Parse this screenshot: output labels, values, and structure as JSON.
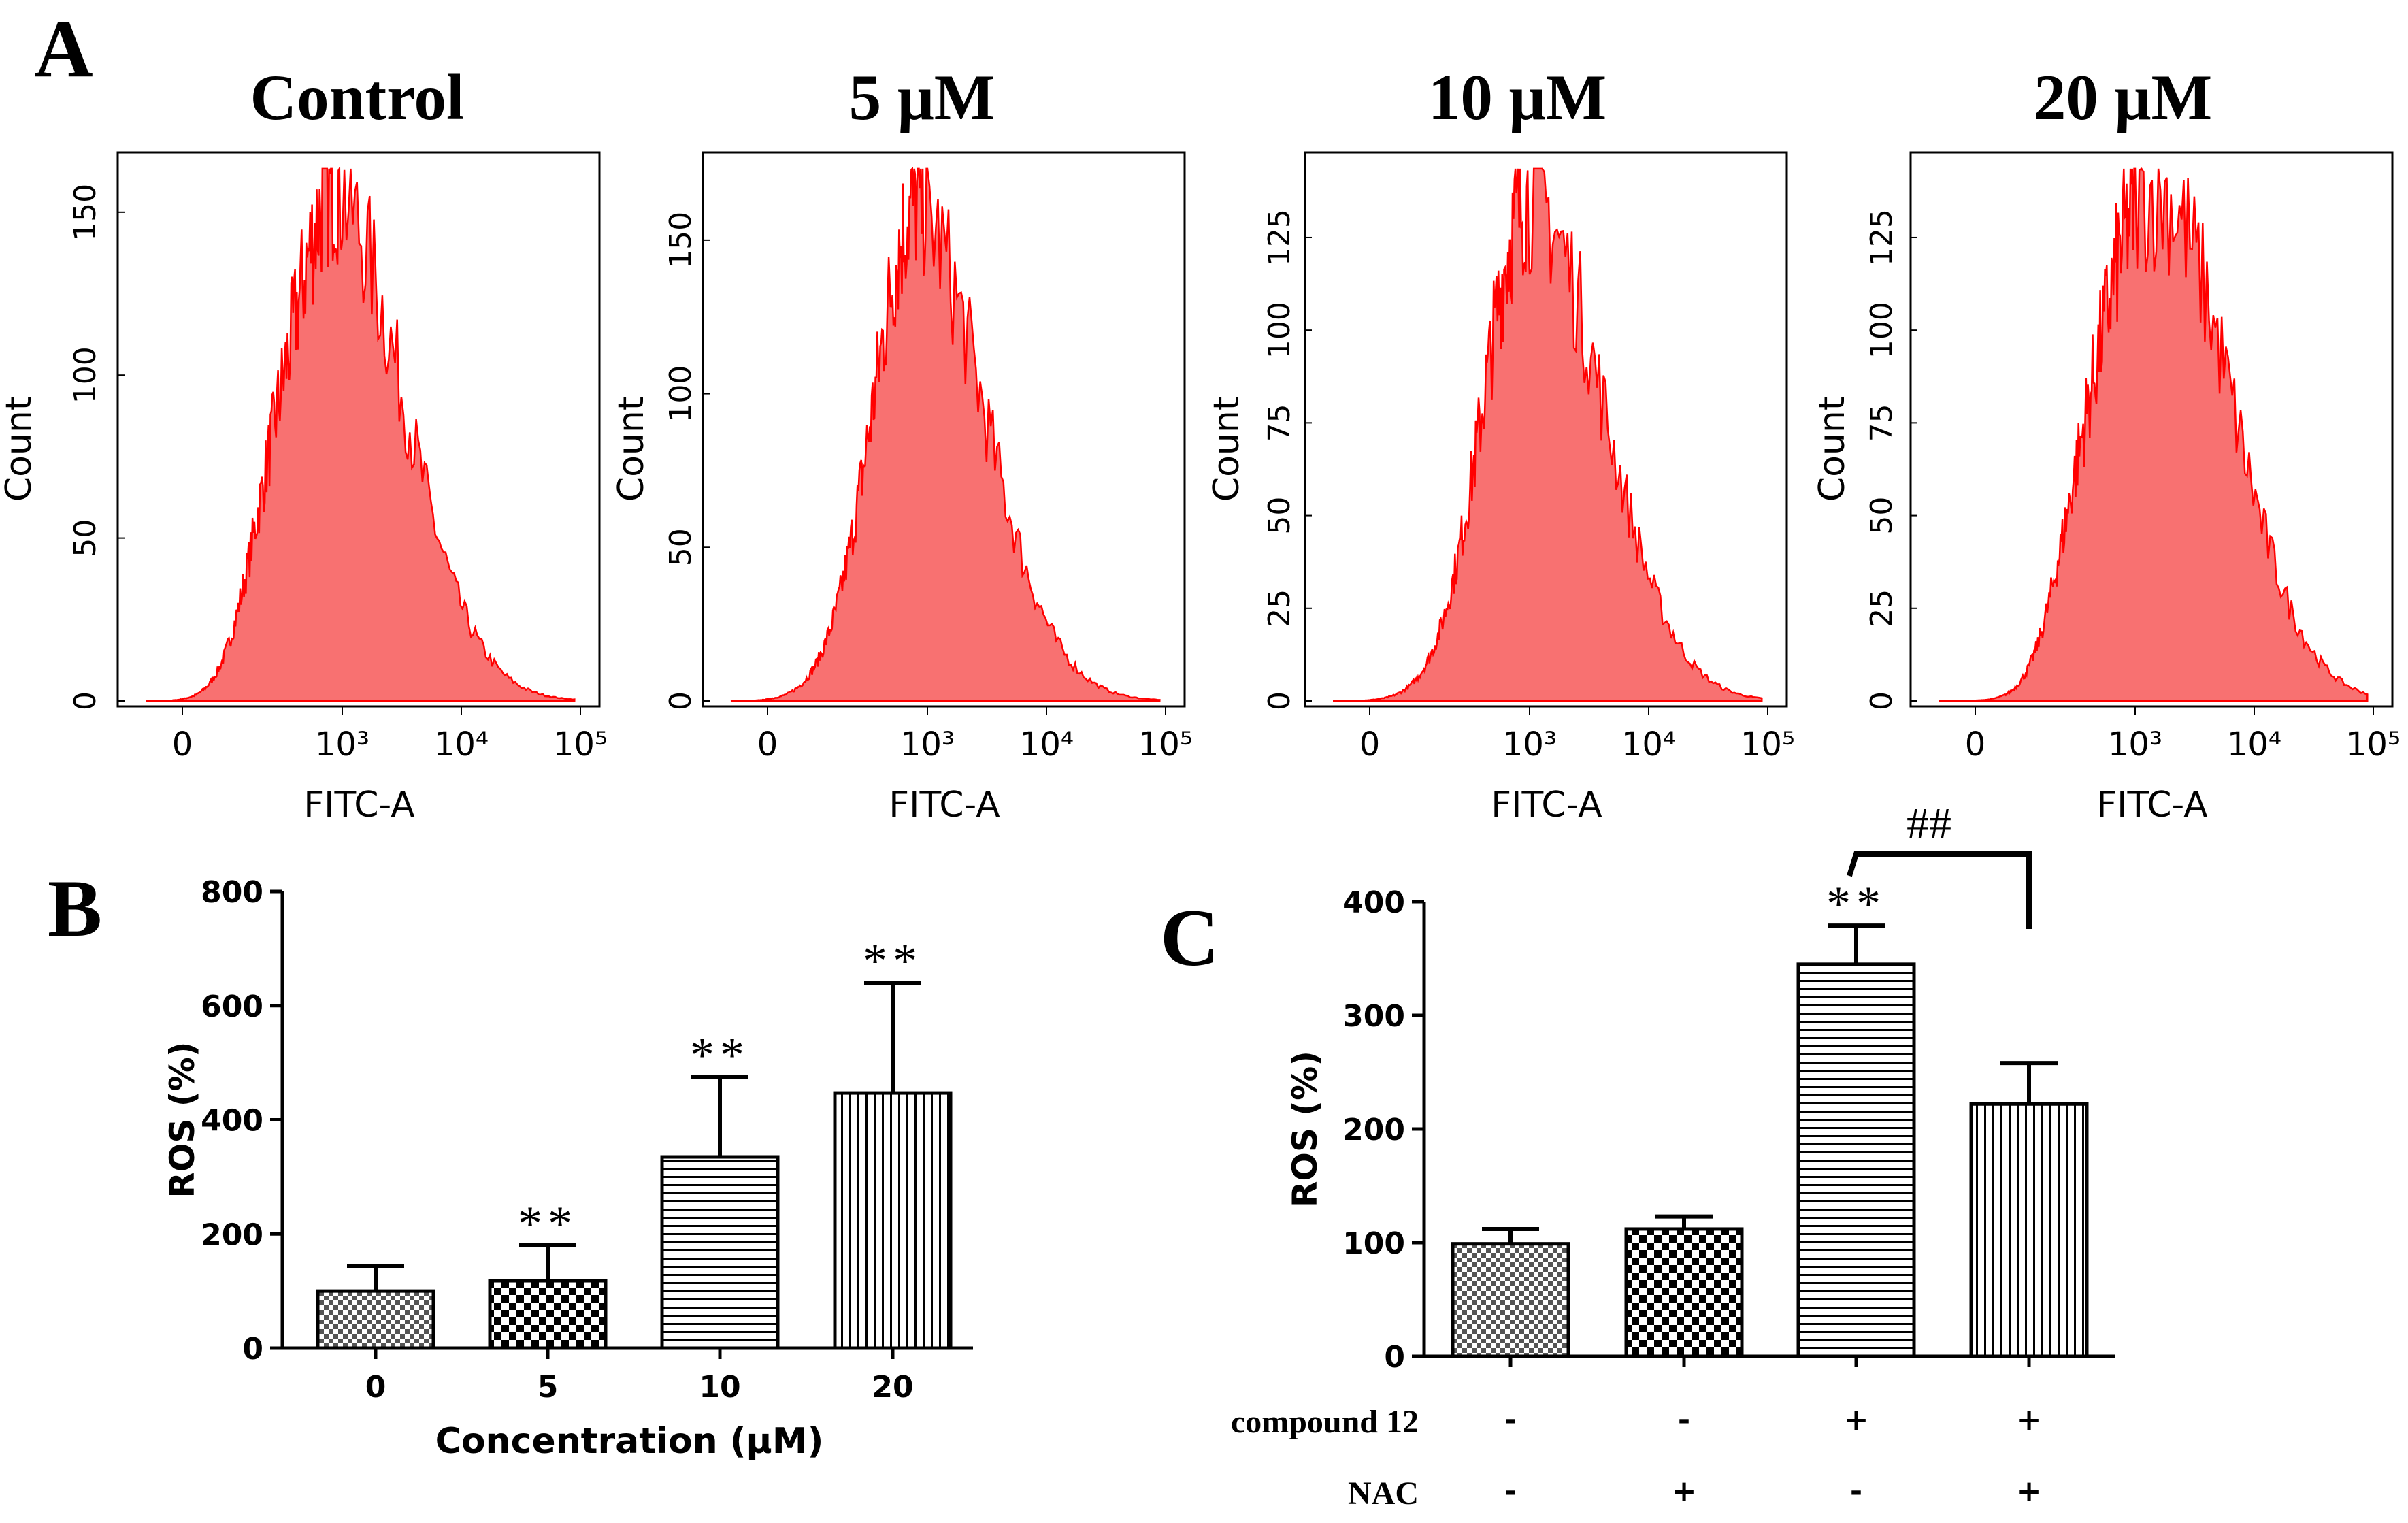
{
  "panels": {
    "a_label": "A",
    "b_label": "B",
    "c_label": "C"
  },
  "colors": {
    "histogram_fill": "#f87171",
    "histogram_line": "#ff0000",
    "ink": "#000000"
  },
  "chart_data": [
    {
      "type": "histogram",
      "panel": "A",
      "title": "Control",
      "xlabel": "FITC-A",
      "ylabel": "Count",
      "x_ticks": [
        "0",
        "10³",
        "10⁴",
        "10⁵"
      ],
      "y_ticks": [
        "0",
        "50",
        "100",
        "150"
      ],
      "ylim": [
        0,
        165
      ],
      "peak_x_log": 2.9,
      "peak_count": 162
    },
    {
      "type": "histogram",
      "panel": "A",
      "title": "5 μM",
      "xlabel": "FITC-A",
      "ylabel": "Count",
      "x_ticks": [
        "0",
        "10³",
        "10⁴",
        "10⁵"
      ],
      "y_ticks": [
        "0",
        "50",
        "100",
        "150"
      ],
      "ylim": [
        0,
        175
      ],
      "peak_x_log": 2.85,
      "peak_count": 168
    },
    {
      "type": "histogram",
      "panel": "A",
      "title": "10 μM",
      "xlabel": "FITC-A",
      "ylabel": "Count",
      "x_ticks": [
        "0",
        "10³",
        "10⁴",
        "10⁵"
      ],
      "y_ticks": [
        "0",
        "25",
        "50",
        "75",
        "100",
        "125"
      ],
      "ylim": [
        0,
        145
      ],
      "peak_x_log": 3.0,
      "peak_count": 140
    },
    {
      "type": "histogram",
      "panel": "A",
      "title": "20 μM",
      "xlabel": "FITC-A",
      "ylabel": "Count",
      "x_ticks": [
        "0",
        "10³",
        "10⁴",
        "10⁵"
      ],
      "y_ticks": [
        "0",
        "25",
        "50",
        "75",
        "100",
        "125"
      ],
      "ylim": [
        0,
        145
      ],
      "peak_x_log": 3.2,
      "peak_count": 140
    },
    {
      "type": "bar",
      "panel": "B",
      "xlabel": "Concentration (μM)",
      "ylabel": "ROS (%)",
      "ylim": [
        0,
        800
      ],
      "y_ticks": [
        "0",
        "200",
        "400",
        "600",
        "800"
      ],
      "categories": [
        "0",
        "5",
        "10",
        "20"
      ],
      "values": [
        100,
        118,
        335,
        447
      ],
      "errors": [
        43,
        62,
        140,
        193
      ],
      "significance": [
        "",
        "**",
        "**",
        "**"
      ]
    },
    {
      "type": "bar",
      "panel": "C",
      "ylabel": "ROS (%)",
      "ylim": [
        0,
        400
      ],
      "y_ticks": [
        "0",
        "100",
        "200",
        "300",
        "400"
      ],
      "values": [
        99,
        112,
        345,
        222
      ],
      "errors": [
        13,
        11,
        34,
        36
      ],
      "significance": [
        "",
        "",
        "**",
        ""
      ],
      "comparison_label": "##",
      "rows": [
        {
          "label": "compound 12",
          "signs": [
            "-",
            "-",
            "+",
            "+"
          ]
        },
        {
          "label": "NAC",
          "signs": [
            "-",
            "+",
            "-",
            "+"
          ]
        }
      ]
    }
  ]
}
